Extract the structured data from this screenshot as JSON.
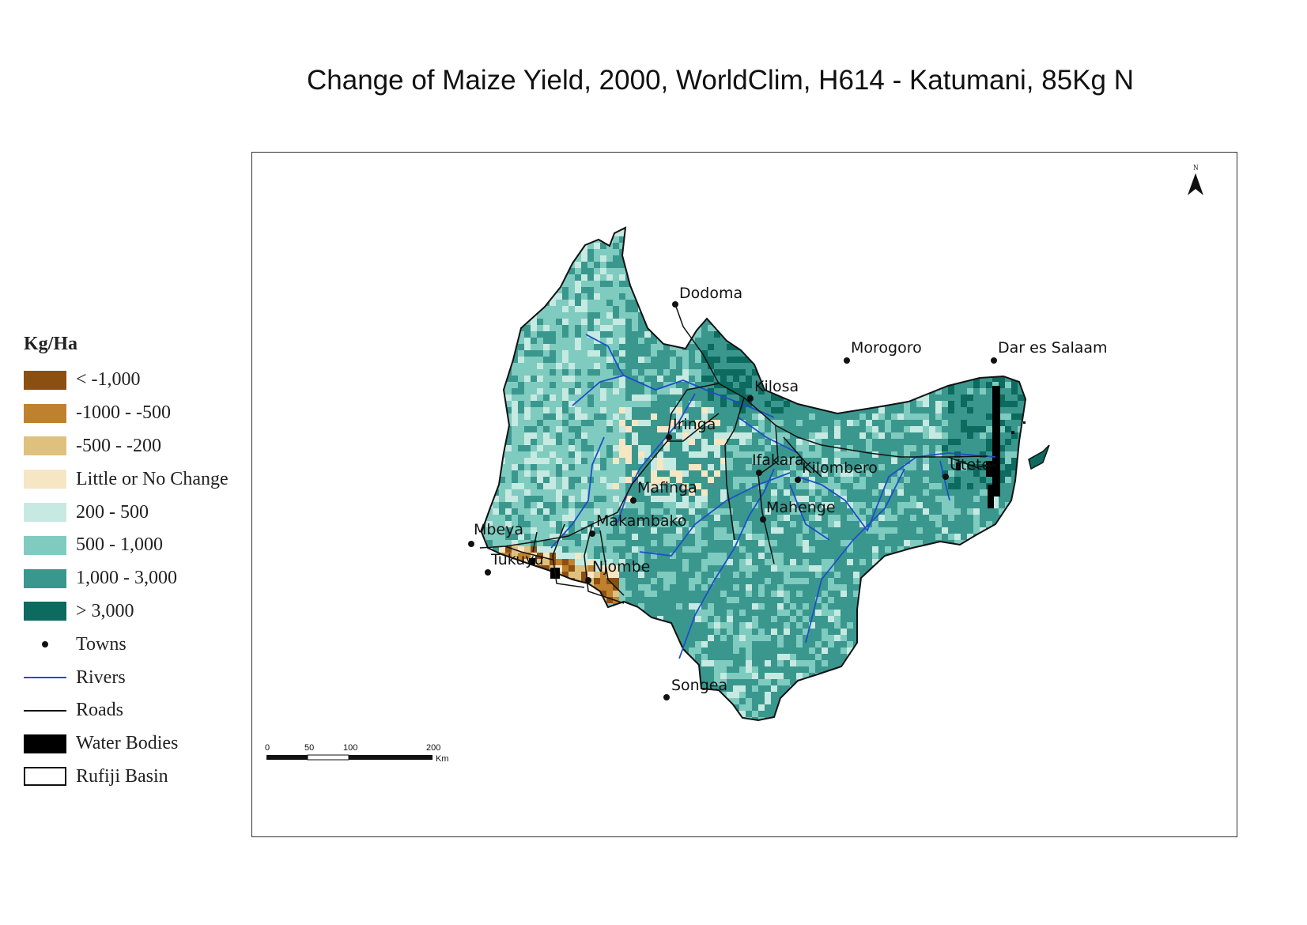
{
  "title": "Change of Maize Yield, 2000, WorldClim, H614 - Katumani, 85Kg N",
  "legend": {
    "title": "Kg/Ha",
    "classes": [
      {
        "label": "< -1,000",
        "color": "#8b4f12"
      },
      {
        "label": "-1000 - -500",
        "color": "#c0812f"
      },
      {
        "label": "-500 - -200",
        "color": "#dfc17e"
      },
      {
        "label": "Little or No Change",
        "color": "#f6e6c3"
      },
      {
        "label": "200 - 500",
        "color": "#c6e9e1"
      },
      {
        "label": "500 - 1,000",
        "color": "#7fcbbf"
      },
      {
        "label": "1,000 - 3,000",
        "color": "#3a978e"
      },
      {
        "label": "> 3,000",
        "color": "#0c6a5f"
      }
    ],
    "symbols": {
      "towns": "Towns",
      "rivers": "Rivers",
      "roads": "Roads",
      "water_bodies": "Water Bodies",
      "basin": "Rufiji Basin"
    }
  },
  "towns": [
    {
      "name": "Dodoma"
    },
    {
      "name": "Morogoro"
    },
    {
      "name": "Dar es Salaam"
    },
    {
      "name": "Kilosa"
    },
    {
      "name": "Iringa"
    },
    {
      "name": "Ifakara"
    },
    {
      "name": "Kilombero"
    },
    {
      "name": "Utete"
    },
    {
      "name": "Mafinga"
    },
    {
      "name": "Mahenge"
    },
    {
      "name": "Mbeya"
    },
    {
      "name": "Makambako"
    },
    {
      "name": "Tukuyu"
    },
    {
      "name": "Njombe"
    },
    {
      "name": "Songea"
    }
  ],
  "scale_bar": {
    "ticks": [
      "0",
      "50",
      "100",
      "200"
    ],
    "unit": "Km"
  },
  "north_arrow": {
    "label": "N",
    "icon": "north-arrow-icon"
  }
}
